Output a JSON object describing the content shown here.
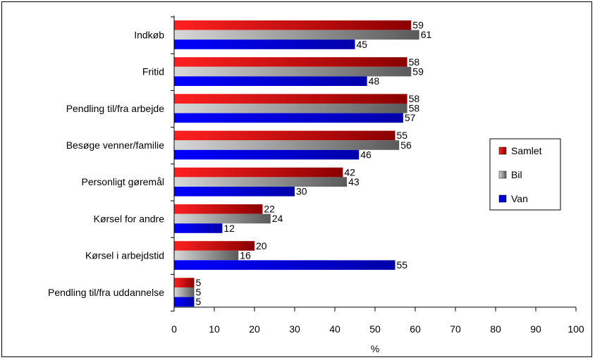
{
  "chart_data": {
    "type": "bar",
    "orientation": "horizontal",
    "categories": [
      "Indkøb",
      "Fritid",
      "Pendling til/fra arbejde",
      "Besøge venner/familie",
      "Personligt gøremål",
      "Kørsel for andre",
      "Kørsel i arbejdstid",
      "Pendling til/fra uddannelse"
    ],
    "series": [
      {
        "name": "Samlet",
        "color": "#e00000",
        "values": [
          59,
          58,
          58,
          55,
          42,
          22,
          20,
          5
        ]
      },
      {
        "name": "Bil",
        "color": "#8a8a8a",
        "values": [
          61,
          59,
          58,
          56,
          43,
          24,
          16,
          5
        ]
      },
      {
        "name": "Van",
        "color": "#0000dd",
        "values": [
          45,
          48,
          57,
          46,
          30,
          12,
          55,
          5
        ]
      }
    ],
    "xlabel": "%",
    "xlim": [
      0,
      100
    ],
    "xticks": [
      "0",
      "10",
      "20",
      "30",
      "40",
      "50",
      "60",
      "70",
      "80",
      "90",
      "100"
    ],
    "grid": false,
    "legend_position": "right"
  }
}
